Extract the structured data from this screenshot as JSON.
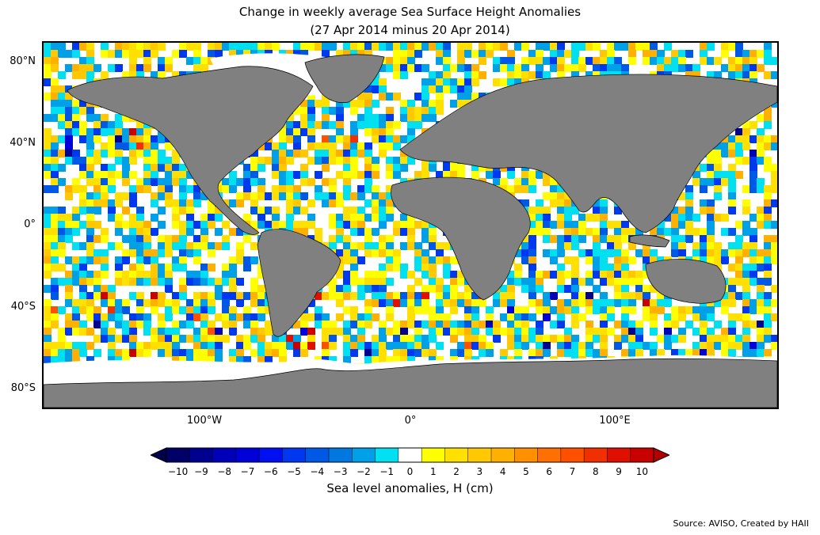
{
  "title_line1": "Change in weekly average Sea Surface Height Anomalies",
  "title_line2": "(27 Apr 2014 minus 20 Apr 2014)",
  "lat_labels": [
    "80°N",
    "40°N",
    "0°",
    "40°S",
    "80°S"
  ],
  "lon_labels": [
    "100°W",
    "0°",
    "100°E"
  ],
  "colorbar": {
    "ticks": [
      "−10",
      "−9",
      "−8",
      "−7",
      "−6",
      "−5",
      "−4",
      "−3",
      "−2",
      "−1",
      "0",
      "1",
      "2",
      "3",
      "4",
      "5",
      "6",
      "7",
      "8",
      "9",
      "10"
    ],
    "colors": [
      "#000066",
      "#00008f",
      "#0000b8",
      "#0000d8",
      "#0010f0",
      "#0038f0",
      "#0058e6",
      "#0078e0",
      "#00a0e8",
      "#00e0f0",
      "#ffffff",
      "#ffff00",
      "#ffe000",
      "#ffc800",
      "#ffb000",
      "#ff9000",
      "#ff7000",
      "#ff5000",
      "#f03000",
      "#e01000",
      "#c80000"
    ],
    "under_color": "#00004a",
    "over_color": "#b00000",
    "label": "Sea level anomalies, H (cm)"
  },
  "map": {
    "land_color": "#808080",
    "ice_color": "#ffffff"
  },
  "source": "Source: AVISO, Created by HAII"
}
